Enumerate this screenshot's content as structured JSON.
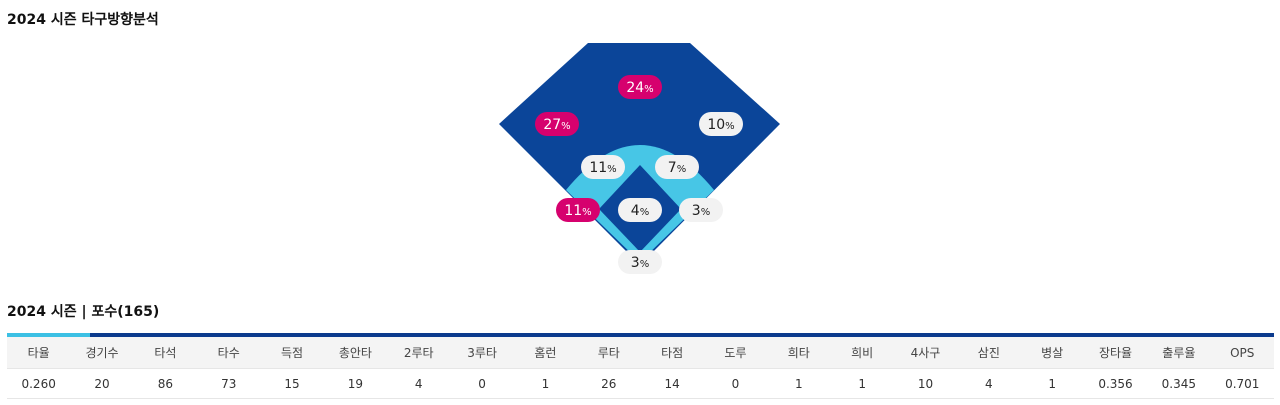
{
  "spray": {
    "title": "2024 시즌 타구방향분석",
    "zones": [
      {
        "name": "center-field",
        "value": "24",
        "unit": "%",
        "highlight": true
      },
      {
        "name": "left-field",
        "value": "27",
        "unit": "%",
        "highlight": true
      },
      {
        "name": "right-field",
        "value": "10",
        "unit": "%",
        "highlight": false
      },
      {
        "name": "shortstop",
        "value": "11",
        "unit": "%",
        "highlight": false
      },
      {
        "name": "second-base",
        "value": "7",
        "unit": "%",
        "highlight": false
      },
      {
        "name": "third-base",
        "value": "11",
        "unit": "%",
        "highlight": true
      },
      {
        "name": "pitcher",
        "value": "4",
        "unit": "%",
        "highlight": false
      },
      {
        "name": "first-base",
        "value": "3",
        "unit": "%",
        "highlight": false
      },
      {
        "name": "catcher",
        "value": "3",
        "unit": "%",
        "highlight": false
      }
    ],
    "colors": {
      "outfield": "#0b4599",
      "infield": "#47c6e6",
      "diamond": "#0b4599",
      "highlight": "#d6016e",
      "normal": "#f2f2f2"
    }
  },
  "season": {
    "title": "2024 시즌 | 포수(165)",
    "headers": [
      "타율",
      "경기수",
      "타석",
      "타수",
      "득점",
      "총안타",
      "2루타",
      "3루타",
      "홈런",
      "루타",
      "타점",
      "도루",
      "희타",
      "희비",
      "4사구",
      "삼진",
      "병살",
      "장타율",
      "출루율",
      "OPS"
    ],
    "values": [
      "0.260",
      "20",
      "86",
      "73",
      "15",
      "19",
      "4",
      "0",
      "1",
      "26",
      "14",
      "0",
      "1",
      "1",
      "10",
      "4",
      "1",
      "0.356",
      "0.345",
      "0.701"
    ]
  }
}
